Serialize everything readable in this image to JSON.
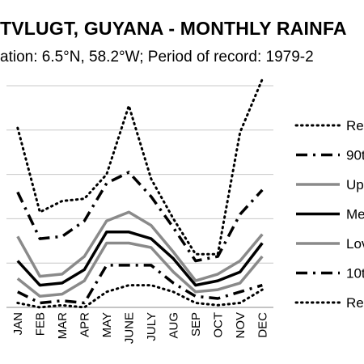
{
  "chart_data": {
    "type": "line",
    "title": "TVLUGT, GUYANA - MONTHLY RAINFA",
    "subtitle": "ation: 6.5°N, 58.2°W; Period of record: 1979-2",
    "categories": [
      "JAN",
      "FEB",
      "MAR",
      "APR",
      "MAY",
      "JUNE",
      "JULY",
      "AUG",
      "SEP",
      "OCT",
      "NOV",
      "DEC"
    ],
    "ylim": [
      0,
      5
    ],
    "grid": true,
    "legend_position": "right",
    "series": [
      {
        "name": "Rec",
        "style": "dotted",
        "color": "#000000",
        "values": [
          4.05,
          2.15,
          2.4,
          2.45,
          3.0,
          4.55,
          2.9,
          2.0,
          1.2,
          1.2,
          3.95,
          5.15
        ]
      },
      {
        "name": "90t",
        "style": "dashdot",
        "color": "#000000",
        "values": [
          2.6,
          1.55,
          1.6,
          1.95,
          2.8,
          3.05,
          2.5,
          1.8,
          1.05,
          1.15,
          2.1,
          2.65
        ]
      },
      {
        "name": "Up",
        "style": "solid-gray",
        "color": "#8a8a8a",
        "values": [
          1.6,
          0.7,
          0.75,
          1.15,
          1.95,
          2.15,
          1.85,
          1.25,
          0.6,
          0.75,
          1.05,
          1.65
        ]
      },
      {
        "name": "Me",
        "style": "solid-black",
        "color": "#000000",
        "values": [
          1.05,
          0.5,
          0.55,
          0.85,
          1.7,
          1.7,
          1.55,
          1.1,
          0.5,
          0.6,
          0.8,
          1.45
        ]
      },
      {
        "name": "Lov",
        "style": "solid-gray",
        "color": "#8a8a8a",
        "values": [
          0.65,
          0.25,
          0.3,
          0.6,
          1.45,
          1.45,
          1.35,
          0.8,
          0.35,
          0.4,
          0.55,
          1.15
        ]
      },
      {
        "name": "10t",
        "style": "dashdot",
        "color": "#000000",
        "values": [
          0.35,
          0.1,
          0.15,
          0.1,
          0.95,
          0.95,
          0.95,
          0.55,
          0.25,
          0.2,
          0.35,
          0.5
        ]
      },
      {
        "name": "Rec",
        "style": "dotted",
        "color": "#000000",
        "values": [
          0.1,
          0.0,
          0.05,
          0.0,
          0.35,
          0.5,
          0.5,
          0.35,
          0.1,
          0.05,
          0.1,
          0.4
        ]
      }
    ]
  }
}
